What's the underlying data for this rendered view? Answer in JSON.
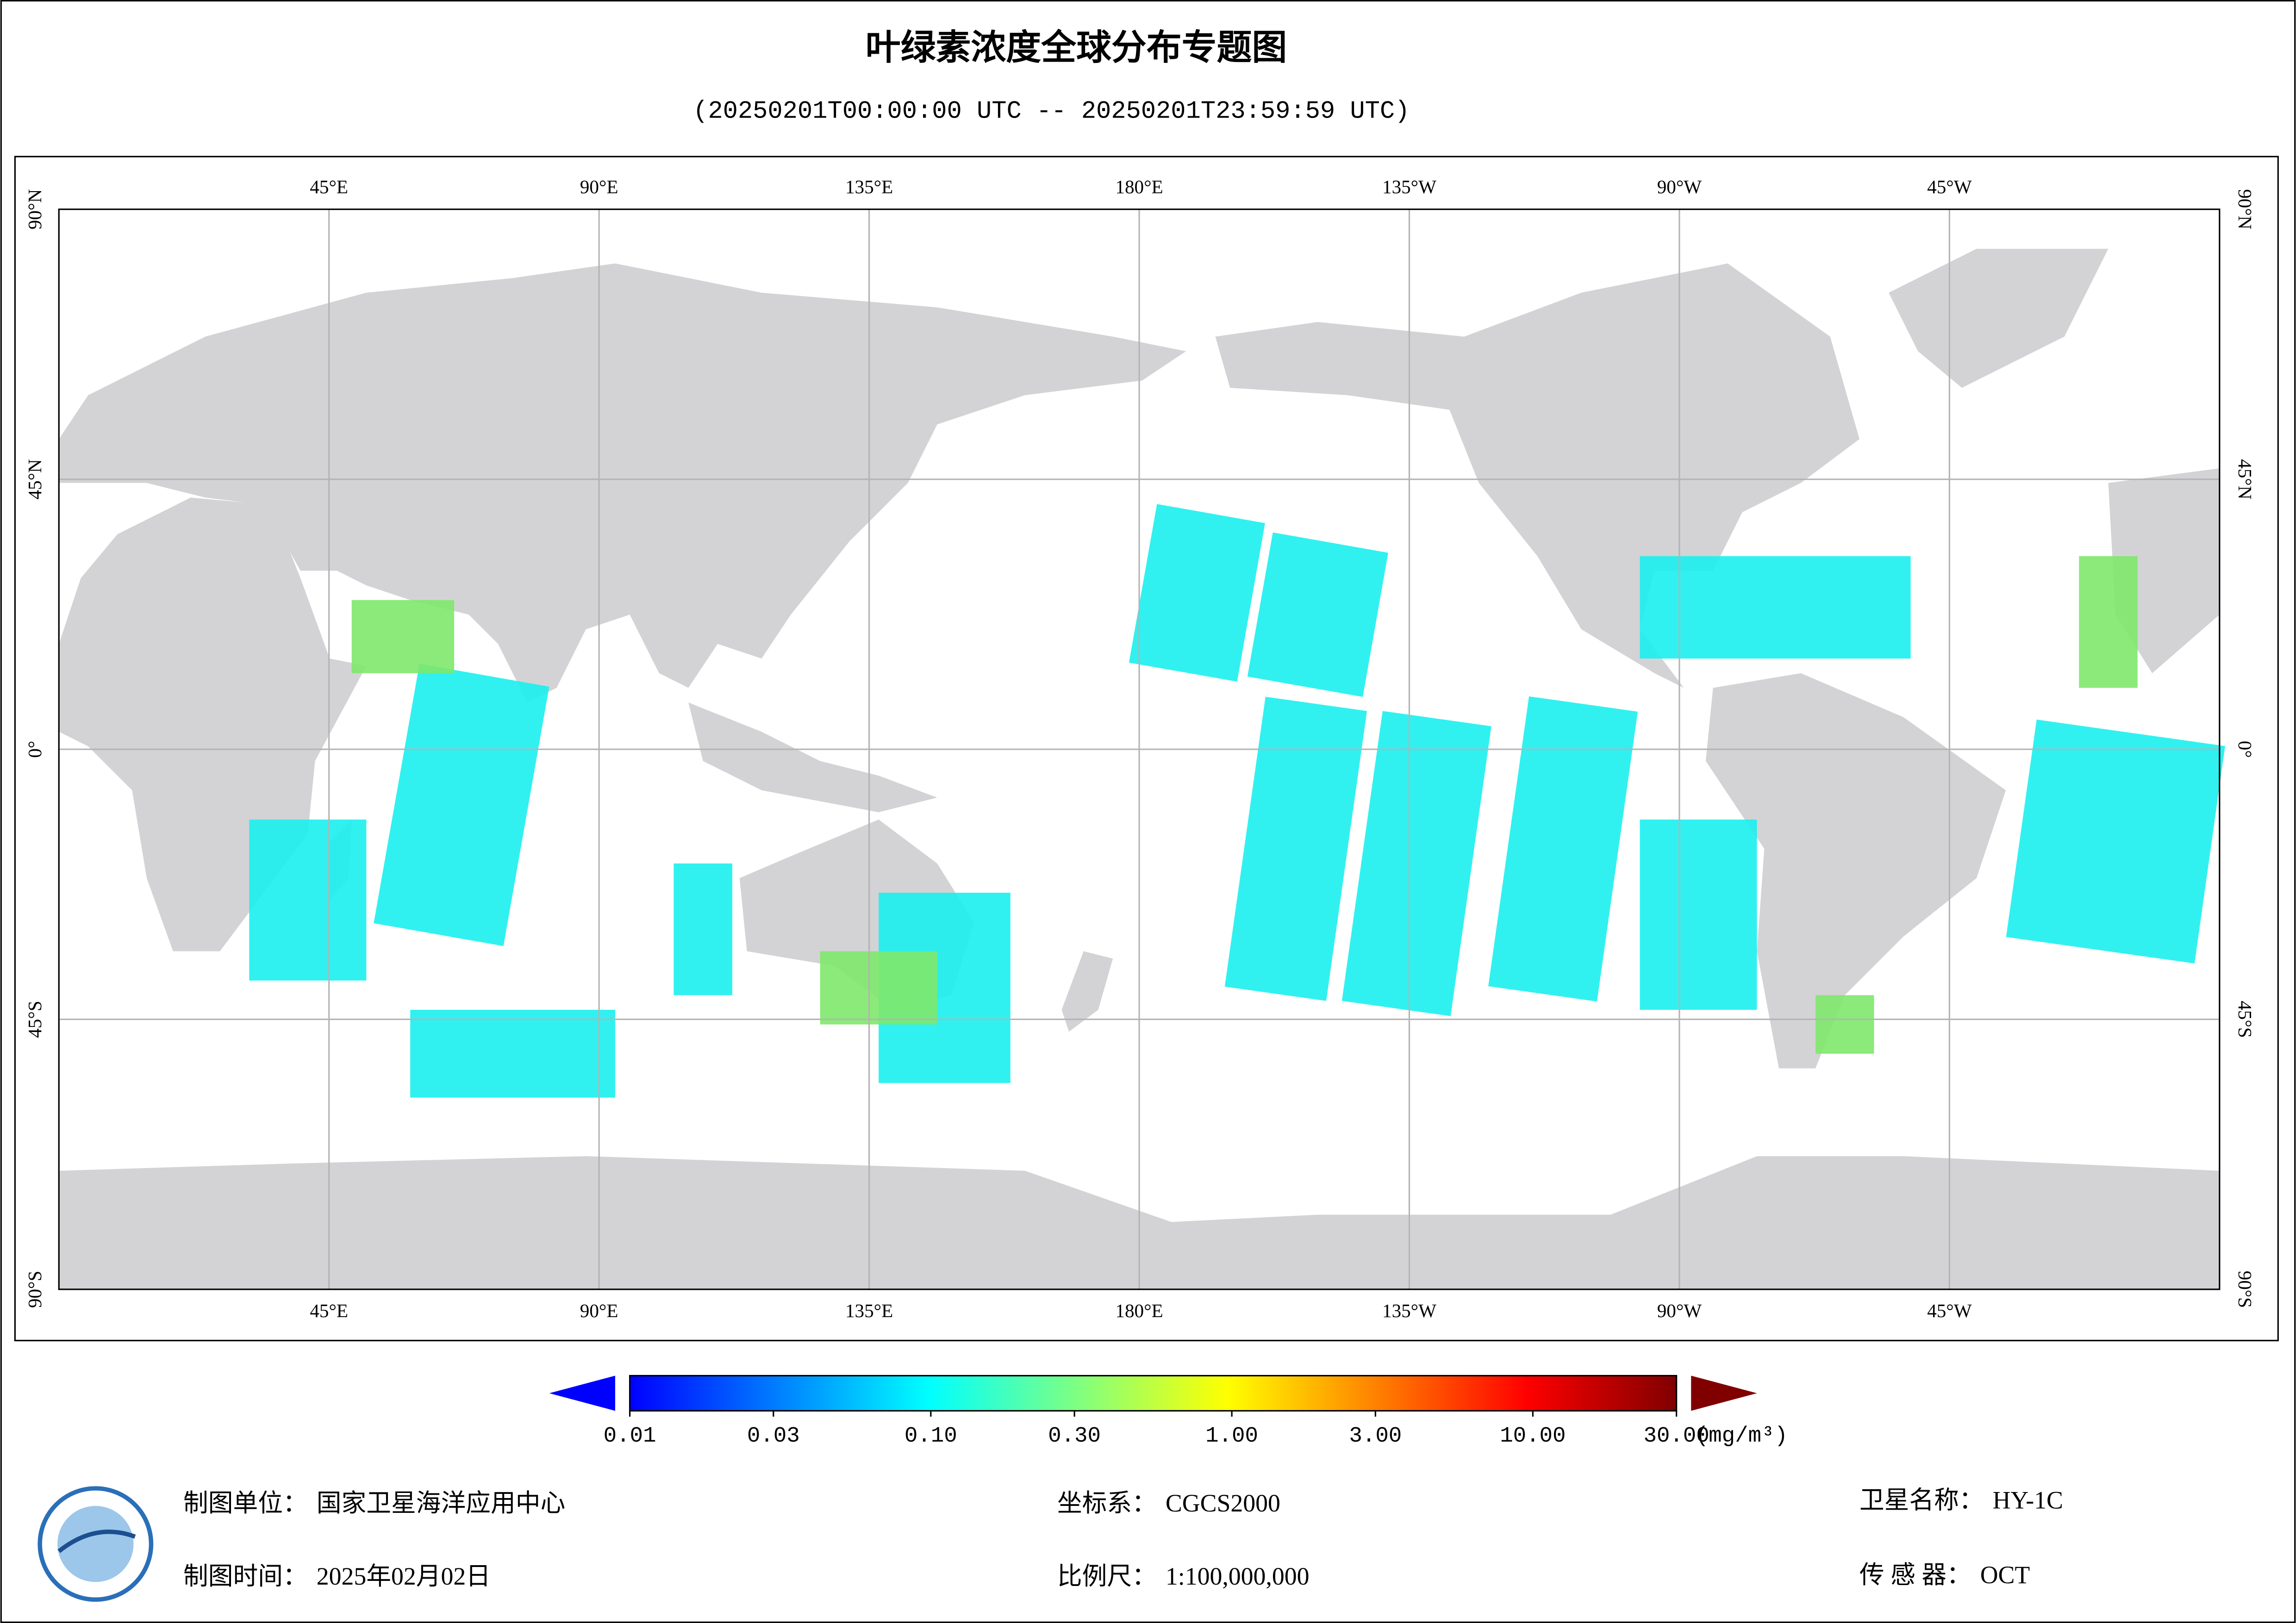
{
  "header": {
    "title": "叶绿素浓度全球分布专题图",
    "subtitle": "(20250201T00:00:00 UTC -- 20250201T23:59:59 UTC)"
  },
  "map": {
    "lon_ticks": [
      {
        "value": 45,
        "label": "45°E"
      },
      {
        "value": 90,
        "label": "90°E"
      },
      {
        "value": 135,
        "label": "135°E"
      },
      {
        "value": 180,
        "label": "180°E"
      },
      {
        "value": -135,
        "label": "135°W"
      },
      {
        "value": -90,
        "label": "90°W"
      },
      {
        "value": -45,
        "label": "45°W"
      }
    ],
    "lat_ticks": [
      {
        "value": 90,
        "label": "90°N"
      },
      {
        "value": 45,
        "label": "45°N"
      },
      {
        "value": 0,
        "label": "0°"
      },
      {
        "value": -45,
        "label": "45°S"
      },
      {
        "value": -90,
        "label": "90°S"
      }
    ],
    "grid": true
  },
  "colorbar": {
    "lim": [
      0.01,
      30
    ],
    "log": true,
    "unit": "(mg/m³)",
    "colors": [
      "#0000ff",
      "#0080ff",
      "#00ffff",
      "#80ff80",
      "#ffff00",
      "#ff8000",
      "#ff0000",
      "#800000"
    ],
    "ticks": [
      0.01,
      0.03,
      {
        "value": 0.1,
        "label": "0.10"
      },
      {
        "value": 0.3,
        "label": "0.30"
      },
      {
        "value": 1,
        "label": "1.00"
      },
      {
        "value": 3,
        "label": "3.00"
      },
      {
        "value": 10,
        "label": "10.00"
      },
      {
        "value": 30,
        "label": "30.00"
      }
    ]
  },
  "footer": {
    "unit": {
      "label": "制图单位：",
      "value": "国家卫星海洋应用中心"
    },
    "time": {
      "label": "制图时间：",
      "value": "2025年02月02日"
    },
    "crs": {
      "label": "坐标系：",
      "value": "CGCS2000"
    },
    "scale": {
      "label": "比例尺：",
      "value": "1:100,000,000"
    },
    "satellite": {
      "label": "卫星名称：",
      "value": "HY-1C"
    },
    "sensor": {
      "label": "传 感 器：",
      "value": "OCT"
    }
  }
}
